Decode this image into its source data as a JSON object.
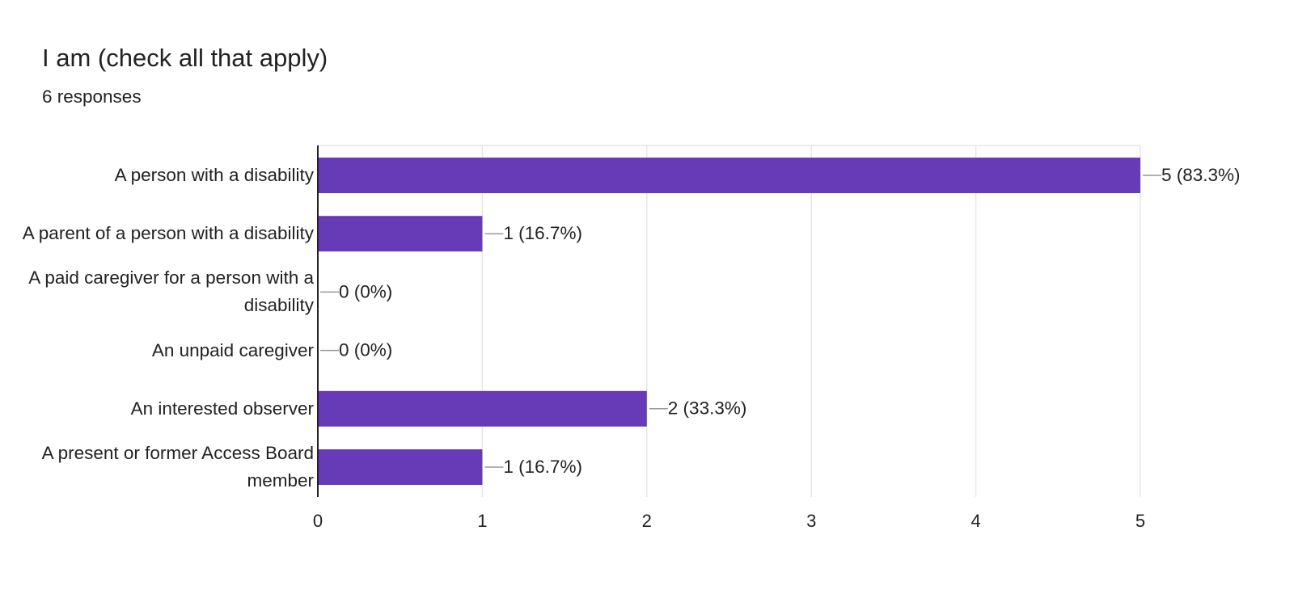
{
  "chart_data": {
    "type": "bar",
    "orientation": "horizontal",
    "title": "I am (check all that apply)",
    "subtitle": "6 responses",
    "categories": [
      "A person with a disability",
      "A parent of a person with a disability",
      "A paid caregiver for a person with a disability",
      "An unpaid caregiver",
      "An interested observer",
      "A present or former Access Board member"
    ],
    "values": [
      5,
      1,
      0,
      0,
      2,
      1
    ],
    "value_labels": [
      "5 (83.3%)",
      "1 (16.7%)",
      "0 (0%)",
      "0 (0%)",
      "2 (33.3%)",
      "1 (16.7%)"
    ],
    "color": "#673ab7",
    "xlim": [
      0,
      5
    ],
    "xticks": [
      0,
      1,
      2,
      3,
      4,
      5
    ],
    "grid": true
  }
}
